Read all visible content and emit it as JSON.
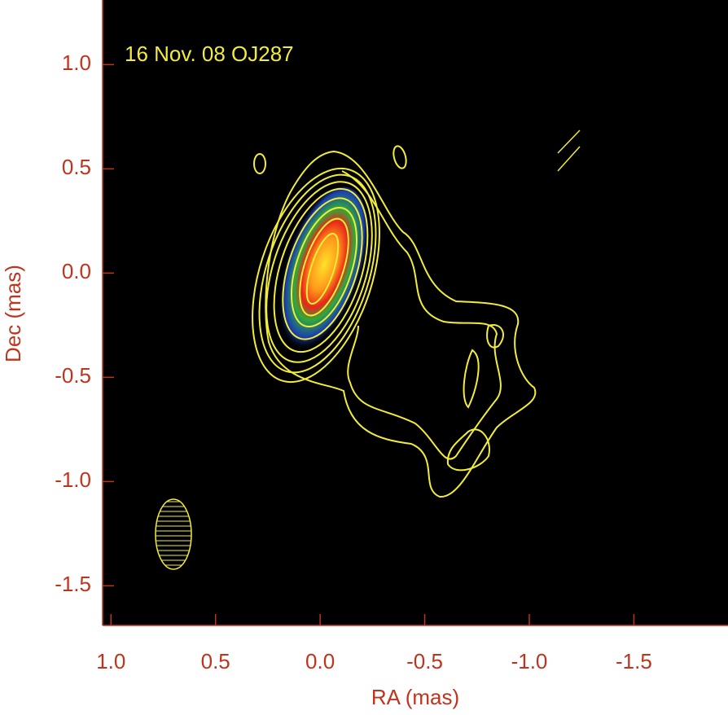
{
  "chart_data": {
    "type": "image",
    "annotation": "16 Nov. 08  OJ287",
    "x_label": "RA (mas)",
    "y_label": "Dec (mas)",
    "xlim": [
      1.04,
      -1.95
    ],
    "ylim": [
      -1.69,
      1.31
    ],
    "xticks": [
      {
        "value": 1,
        "label": "1.0"
      },
      0.5,
      {
        "value": 0,
        "label": "0.0"
      },
      -0.5,
      {
        "value": -1,
        "label": "-1.0"
      },
      -1.5
    ],
    "yticks": [
      {
        "value": 1,
        "label": "1.0"
      },
      0.5,
      {
        "value": 0,
        "label": "0.0"
      },
      -0.5,
      {
        "value": -1,
        "label": "-1.0"
      },
      -1.5
    ],
    "tick_color": "#c0341d",
    "contour_color": "#f2ec3a"
  }
}
